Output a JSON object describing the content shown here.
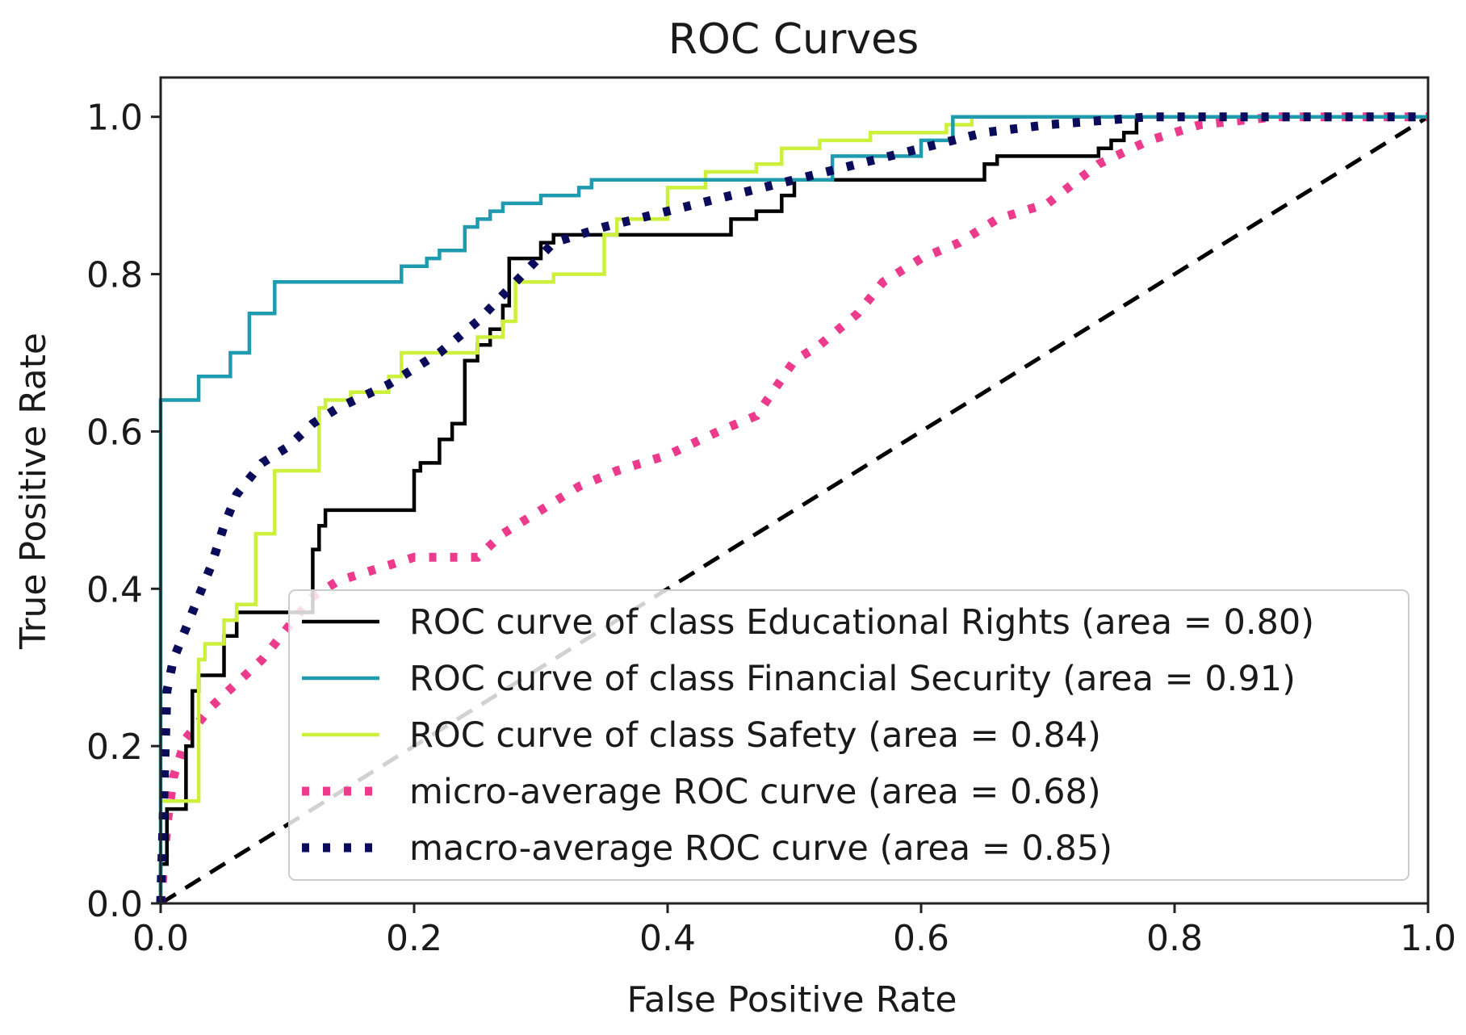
{
  "chart_data": {
    "type": "line",
    "title": "ROC Curves",
    "xlabel": "False Positive Rate",
    "ylabel": "True Positive Rate",
    "xlim": [
      0.0,
      1.0
    ],
    "ylim": [
      0.0,
      1.05
    ],
    "xticks": [
      "0.0",
      "0.2",
      "0.4",
      "0.6",
      "0.8",
      "1.0"
    ],
    "yticks": [
      "0.0",
      "0.2",
      "0.4",
      "0.6",
      "0.8",
      "1.0"
    ],
    "legend_position": "lower-right",
    "grid": false,
    "series": [
      {
        "name": "ROC curve of class Educational Rights (area = 0.80)",
        "color": "#000000",
        "style": "solid",
        "x": [
          0,
          0,
          0.005,
          0.005,
          0.02,
          0.02,
          0.025,
          0.025,
          0.03,
          0.03,
          0.05,
          0.05,
          0.06,
          0.06,
          0.12,
          0.12,
          0.125,
          0.125,
          0.13,
          0.13,
          0.2,
          0.2,
          0.205,
          0.205,
          0.22,
          0.22,
          0.23,
          0.23,
          0.24,
          0.24,
          0.25,
          0.25,
          0.26,
          0.26,
          0.27,
          0.27,
          0.275,
          0.275,
          0.3,
          0.3,
          0.31,
          0.31,
          0.45,
          0.45,
          0.47,
          0.47,
          0.49,
          0.49,
          0.5,
          0.5,
          0.65,
          0.65,
          0.66,
          0.66,
          0.74,
          0.74,
          0.75,
          0.75,
          0.76,
          0.76,
          0.77,
          0.77,
          1.0
        ],
        "y": [
          0,
          0.05,
          0.05,
          0.12,
          0.12,
          0.2,
          0.2,
          0.27,
          0.27,
          0.29,
          0.29,
          0.34,
          0.34,
          0.37,
          0.37,
          0.45,
          0.45,
          0.48,
          0.48,
          0.5,
          0.5,
          0.55,
          0.55,
          0.56,
          0.56,
          0.59,
          0.59,
          0.61,
          0.61,
          0.69,
          0.69,
          0.71,
          0.71,
          0.73,
          0.73,
          0.76,
          0.76,
          0.82,
          0.82,
          0.84,
          0.84,
          0.85,
          0.85,
          0.87,
          0.87,
          0.88,
          0.88,
          0.9,
          0.9,
          0.92,
          0.92,
          0.94,
          0.94,
          0.95,
          0.95,
          0.96,
          0.96,
          0.97,
          0.97,
          0.98,
          0.98,
          1.0,
          1.0
        ]
      },
      {
        "name": "ROC curve of class Financial Security (area = 0.91)",
        "color": "#1f9bb0",
        "style": "solid",
        "x": [
          0,
          0,
          0.03,
          0.03,
          0.055,
          0.055,
          0.07,
          0.07,
          0.09,
          0.09,
          0.19,
          0.19,
          0.21,
          0.21,
          0.22,
          0.22,
          0.24,
          0.24,
          0.25,
          0.25,
          0.26,
          0.26,
          0.27,
          0.27,
          0.3,
          0.3,
          0.33,
          0.33,
          0.34,
          0.34,
          0.53,
          0.53,
          0.6,
          0.6,
          0.625,
          0.625,
          0.64,
          0.64,
          1.0
        ],
        "y": [
          0,
          0.64,
          0.64,
          0.67,
          0.67,
          0.7,
          0.7,
          0.75,
          0.75,
          0.79,
          0.79,
          0.81,
          0.81,
          0.82,
          0.82,
          0.83,
          0.83,
          0.86,
          0.86,
          0.87,
          0.87,
          0.88,
          0.88,
          0.89,
          0.89,
          0.9,
          0.9,
          0.91,
          0.91,
          0.92,
          0.92,
          0.95,
          0.95,
          0.97,
          0.97,
          1.0,
          1.0,
          1.0,
          1.0
        ]
      },
      {
        "name": "ROC curve of class Safety (area = 0.84)",
        "color": "#ccf03c",
        "style": "solid",
        "x": [
          0,
          0.03,
          0.03,
          0.035,
          0.035,
          0.05,
          0.05,
          0.06,
          0.06,
          0.075,
          0.075,
          0.09,
          0.09,
          0.105,
          0.105,
          0.125,
          0.125,
          0.13,
          0.13,
          0.15,
          0.15,
          0.18,
          0.18,
          0.19,
          0.19,
          0.25,
          0.25,
          0.27,
          0.27,
          0.28,
          0.28,
          0.31,
          0.31,
          0.35,
          0.35,
          0.36,
          0.36,
          0.4,
          0.4,
          0.43,
          0.43,
          0.47,
          0.47,
          0.49,
          0.49,
          0.52,
          0.52,
          0.56,
          0.56,
          0.62,
          0.62,
          0.64,
          0.64,
          0.65,
          0.65,
          1.0
        ],
        "y": [
          0.13,
          0.13,
          0.31,
          0.31,
          0.33,
          0.33,
          0.36,
          0.36,
          0.38,
          0.38,
          0.47,
          0.47,
          0.55,
          0.55,
          0.55,
          0.55,
          0.63,
          0.63,
          0.64,
          0.64,
          0.65,
          0.65,
          0.67,
          0.67,
          0.7,
          0.7,
          0.72,
          0.72,
          0.74,
          0.74,
          0.79,
          0.79,
          0.8,
          0.8,
          0.85,
          0.85,
          0.87,
          0.87,
          0.91,
          0.91,
          0.93,
          0.93,
          0.94,
          0.94,
          0.96,
          0.96,
          0.97,
          0.97,
          0.98,
          0.98,
          0.99,
          0.99,
          1.0,
          1.0,
          1.0,
          1.0
        ]
      },
      {
        "name": "micro-average ROC curve (area = 0.68)",
        "color": "#ec3b8c",
        "style": "dotted",
        "x": [
          0,
          0.005,
          0.01,
          0.02,
          0.04,
          0.06,
          0.08,
          0.1,
          0.12,
          0.14,
          0.16,
          0.18,
          0.2,
          0.25,
          0.27,
          0.3,
          0.33,
          0.36,
          0.4,
          0.44,
          0.47,
          0.5,
          0.52,
          0.55,
          0.57,
          0.6,
          0.63,
          0.66,
          0.7,
          0.74,
          0.78,
          0.82,
          0.88,
          1.0
        ],
        "y": [
          0,
          0.1,
          0.16,
          0.21,
          0.25,
          0.28,
          0.31,
          0.35,
          0.39,
          0.41,
          0.42,
          0.43,
          0.44,
          0.44,
          0.47,
          0.5,
          0.53,
          0.55,
          0.57,
          0.6,
          0.62,
          0.69,
          0.71,
          0.75,
          0.79,
          0.82,
          0.84,
          0.87,
          0.89,
          0.94,
          0.97,
          0.99,
          1.0,
          1.0
        ]
      },
      {
        "name": "macro-average ROC curve (area = 0.85)",
        "color": "#0b0b5c",
        "style": "dotted",
        "x": [
          0,
          0.005,
          0.01,
          0.02,
          0.03,
          0.04,
          0.05,
          0.06,
          0.08,
          0.1,
          0.12,
          0.14,
          0.18,
          0.22,
          0.25,
          0.28,
          0.31,
          0.35,
          0.4,
          0.45,
          0.5,
          0.55,
          0.6,
          0.65,
          0.7,
          0.78,
          0.85,
          1.0
        ],
        "y": [
          0,
          0.27,
          0.31,
          0.35,
          0.39,
          0.43,
          0.48,
          0.52,
          0.56,
          0.58,
          0.61,
          0.63,
          0.66,
          0.7,
          0.74,
          0.79,
          0.84,
          0.86,
          0.88,
          0.9,
          0.92,
          0.94,
          0.96,
          0.98,
          0.99,
          1.0,
          1.0,
          1.0
        ]
      },
      {
        "name": "chance",
        "color": "#000000",
        "style": "dashed",
        "x": [
          0,
          1
        ],
        "y": [
          0,
          1
        ]
      }
    ]
  }
}
